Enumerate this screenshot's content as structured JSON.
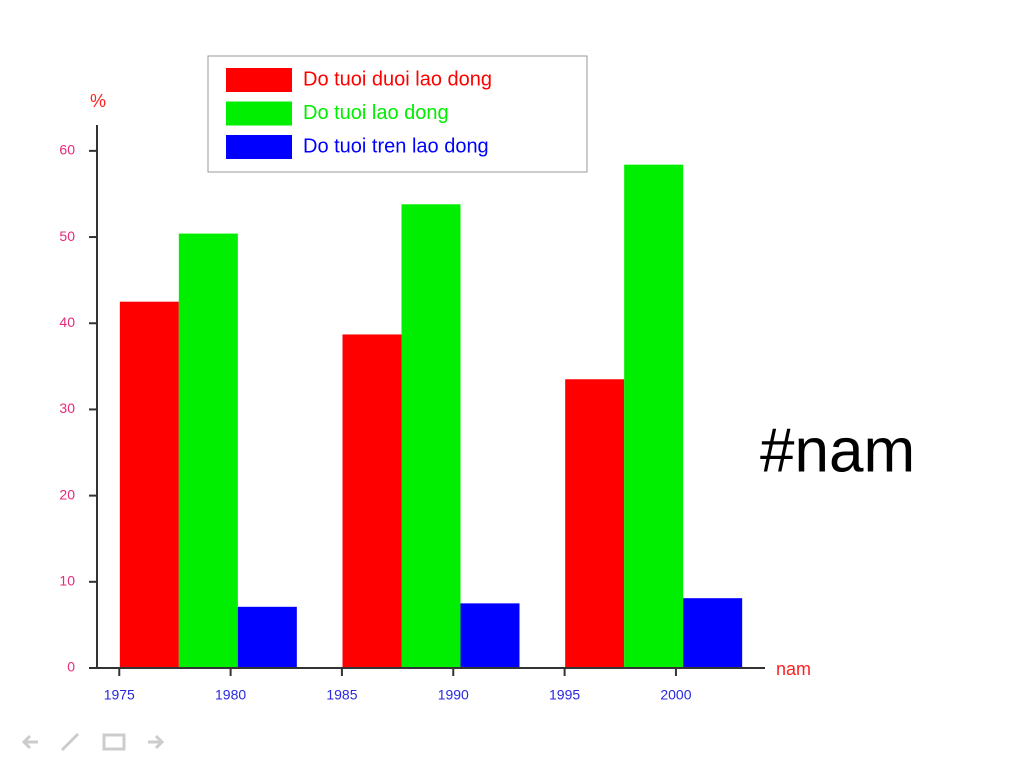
{
  "chart_data": {
    "type": "bar",
    "y_label": "%",
    "x_label": "nam",
    "annotation": "#nam",
    "x": [
      1979,
      1989,
      1999
    ],
    "series": [
      {
        "name": "Do tuoi duoi lao dong",
        "color": "#ff0000",
        "values": [
          42.5,
          38.7,
          33.5
        ]
      },
      {
        "name": "Do tuoi lao dong",
        "color": "#00ee00",
        "values": [
          50.4,
          53.8,
          58.4
        ]
      },
      {
        "name": "Do tuoi tren lao dong",
        "color": "#0000ff",
        "values": [
          7.1,
          7.5,
          8.1
        ]
      }
    ],
    "xlim": [
      1974,
      2004
    ],
    "xticks": [
      1975,
      1980,
      1985,
      1990,
      1995,
      2000
    ],
    "ylim": [
      0,
      63
    ],
    "yticks": [
      0,
      10,
      20,
      30,
      40,
      50,
      60
    ],
    "legend": "top"
  }
}
